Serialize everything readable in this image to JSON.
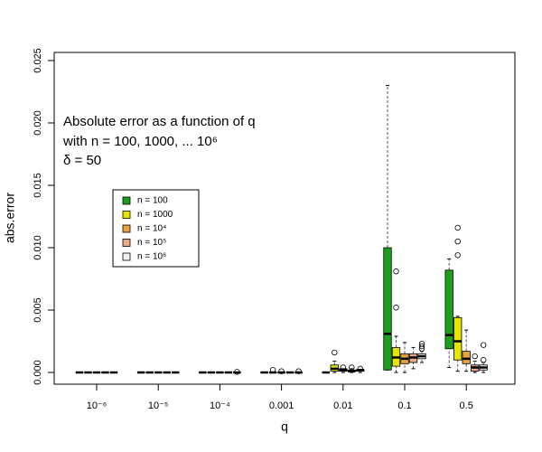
{
  "chart_data": {
    "type": "box",
    "annotation": [
      "Absolute error as a function of q",
      "with n = 100, 1000, ... 10⁶",
      "δ = 50"
    ],
    "x_label": "q",
    "y_label": "abs.error",
    "categories": [
      "10⁻⁶",
      "10⁻⁵",
      "10⁻⁴",
      "0.001",
      "0.01",
      "0.1",
      "0.5"
    ],
    "ylim": [
      -0.00094,
      0.02565
    ],
    "yticks": [
      {
        "value": 0,
        "label": "0.000"
      },
      0.005,
      {
        "value": 0.01,
        "label": "0.010"
      },
      0.015,
      {
        "value": 0.02,
        "label": "0.020"
      },
      0.025
    ],
    "series": [
      {
        "name": "n = 100",
        "color": "#1ca01c",
        "stats": [
          [
            0,
            0,
            0,
            0,
            0
          ],
          [
            0,
            0,
            0,
            0,
            0
          ],
          [
            0,
            0,
            0,
            0,
            0
          ],
          [
            0,
            0,
            0,
            0,
            0
          ],
          [
            0,
            0,
            0,
            0,
            0
          ],
          [
            0.0002,
            0.0002,
            0.0031,
            0.01,
            0.023
          ],
          [
            0.0004,
            0.0019,
            0.003,
            0.0082,
            0.0091
          ]
        ],
        "outliers": [
          [],
          [],
          [],
          [],
          [],
          [],
          []
        ]
      },
      {
        "name": "n = 1000",
        "color": "#e6e600",
        "stats": [
          [
            0,
            0,
            0,
            0,
            0
          ],
          [
            0,
            0,
            0,
            0,
            0
          ],
          [
            0,
            0,
            0,
            0,
            0
          ],
          [
            0,
            0,
            0,
            0,
            0
          ],
          [
            0,
            0.0001,
            0.0003,
            0.0006,
            0.0009
          ],
          [
            0,
            0.0005,
            0.0012,
            0.002,
            0.0029
          ],
          [
            0.0001,
            0.001,
            0.0025,
            0.0044,
            0.0045
          ]
        ],
        "outliers": [
          [],
          [],
          [],
          [
            0.0002
          ],
          [
            0.0016
          ],
          [
            0.0052,
            0.0081
          ],
          [
            0.0094,
            0.0105,
            0.0116
          ]
        ]
      },
      {
        "name": "n = 10⁴",
        "color": "#e8a040",
        "stats": [
          [
            0,
            0,
            0,
            0,
            0
          ],
          [
            0,
            0,
            0,
            0,
            0
          ],
          [
            0,
            0,
            0,
            0,
            0
          ],
          [
            0,
            0,
            0,
            0,
            0
          ],
          [
            0,
            0.0001,
            0.0002,
            0.0003,
            0.0003
          ],
          [
            0,
            0.0007,
            0.0011,
            0.0015,
            0.0024
          ],
          [
            0.0001,
            0.0007,
            0.0011,
            0.0017,
            0.0034
          ]
        ],
        "outliers": [
          [],
          [],
          [],
          [
            0.0001
          ],
          [
            0.0004
          ],
          [],
          []
        ]
      },
      {
        "name": "n = 10⁵",
        "color": "#eaa88a",
        "stats": [
          [
            0,
            0,
            0,
            0,
            0
          ],
          [
            0,
            0,
            0,
            0,
            0
          ],
          [
            0,
            0,
            0,
            0,
            0
          ],
          [
            0,
            0,
            0,
            0,
            0
          ],
          [
            0,
            0.0001,
            0.0001,
            0.0002,
            0.0003
          ],
          [
            0.0003,
            0.0008,
            0.0012,
            0.0015,
            0.002
          ],
          [
            0,
            0.0001,
            0.0004,
            0.0006,
            0.0009
          ]
        ],
        "outliers": [
          [],
          [],
          [],
          [],
          [
            0.0004
          ],
          [],
          [
            0.0013
          ]
        ]
      },
      {
        "name": "n = 10⁶",
        "color": "#f2f2f2",
        "stats": [
          [
            0,
            0,
            0,
            0,
            0
          ],
          [
            0,
            0,
            0,
            0,
            0
          ],
          [
            0,
            0,
            0,
            0,
            0
          ],
          [
            0,
            0,
            0,
            0,
            0
          ],
          [
            0,
            0.0001,
            0.0002,
            0.0002,
            0.0002
          ],
          [
            0.0008,
            0.0011,
            0.0013,
            0.0015,
            0.0017
          ],
          [
            0,
            0.0002,
            0.0004,
            0.0006,
            0.0008
          ]
        ],
        "outliers": [
          [],
          [],
          [
            5e-05
          ],
          [
            0.0001
          ],
          [
            0.0003
          ],
          [
            0.0019,
            0.0021,
            0.0023
          ],
          [
            0.001,
            0.0022
          ]
        ]
      }
    ]
  }
}
